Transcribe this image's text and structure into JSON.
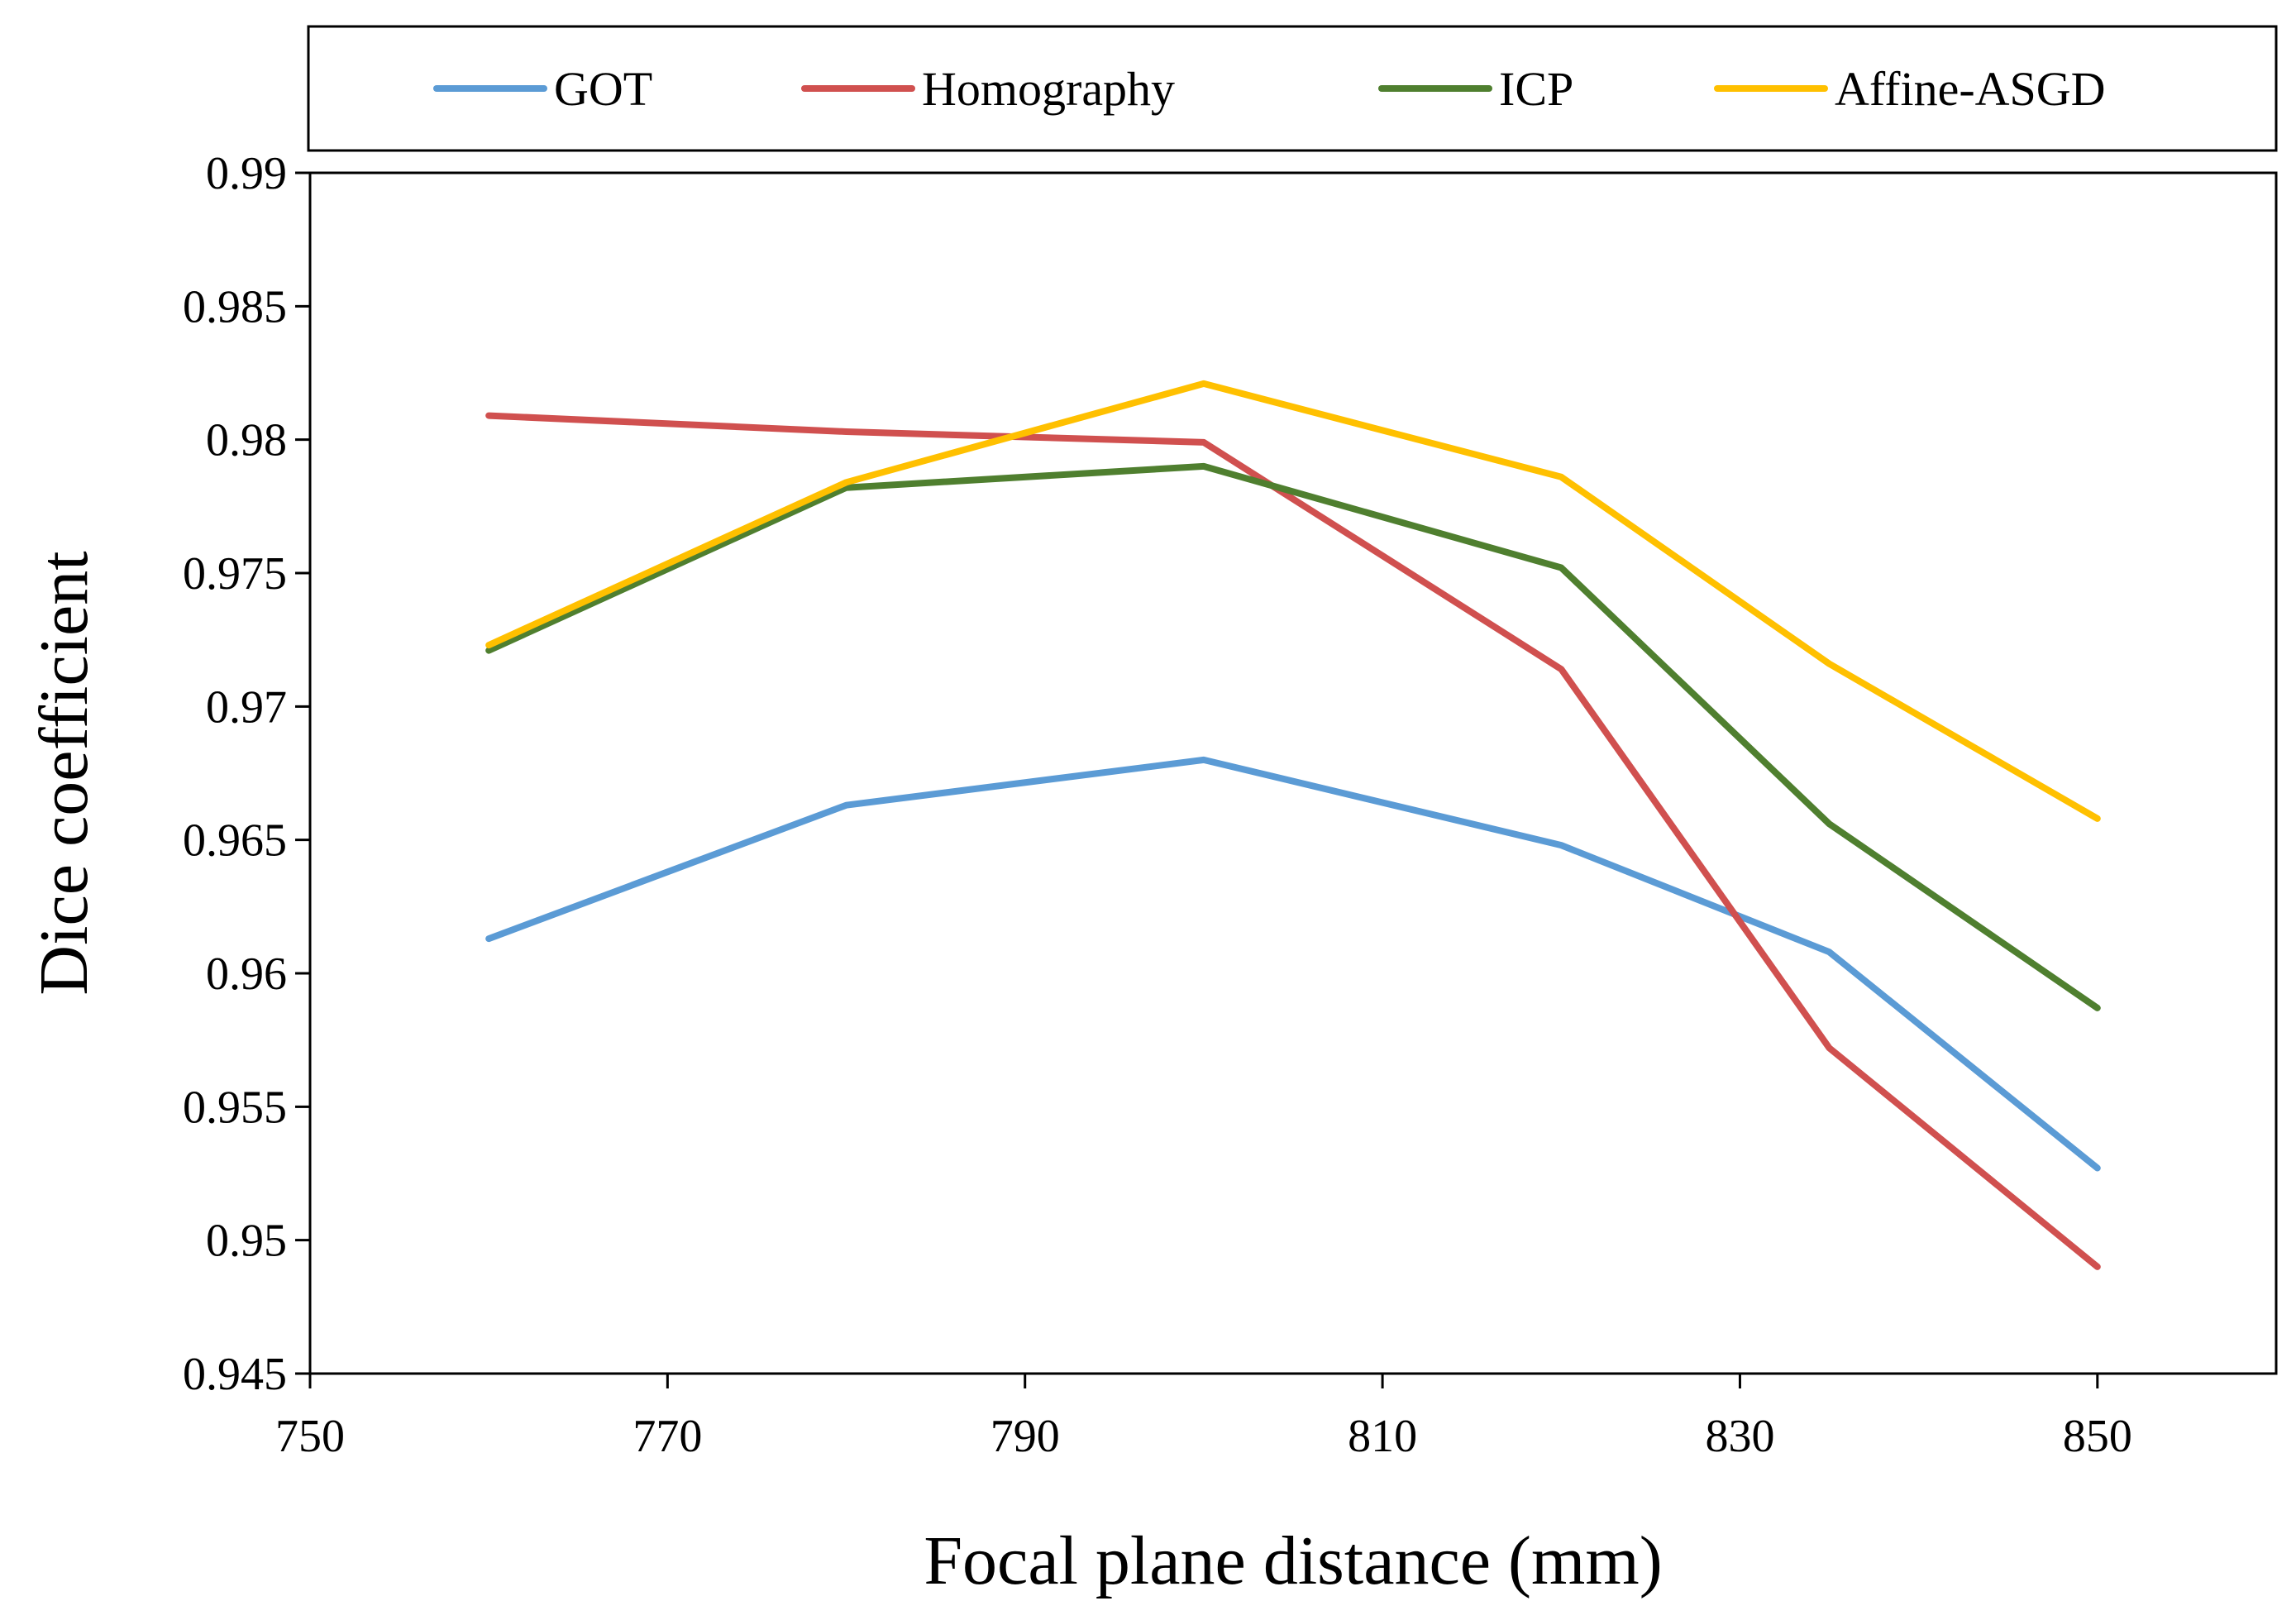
{
  "chart_data": {
    "type": "line",
    "title": "",
    "xlabel": "Focal plane distance (mm)",
    "ylabel": "Dice coefficient",
    "x": [
      760,
      780,
      800,
      820,
      835,
      850
    ],
    "xlim": [
      750,
      860
    ],
    "ylim": [
      0.945,
      0.99
    ],
    "xticks": [
      750,
      770,
      790,
      810,
      830,
      850
    ],
    "xtick_labels": [
      "750",
      "770",
      "790",
      "810",
      "830",
      "850"
    ],
    "yticks": [
      0.945,
      0.95,
      0.955,
      0.96,
      0.965,
      0.97,
      0.975,
      0.98,
      0.985,
      0.99
    ],
    "ytick_labels": [
      "0.945",
      "0.95",
      "0.955",
      "0.96",
      "0.965",
      "0.97",
      "0.975",
      "0.98",
      "0.985",
      "0.99"
    ],
    "grid": false,
    "legend_position": "top",
    "series": [
      {
        "name": "GOT",
        "color": "#5b9bd5",
        "values": [
          0.9613,
          0.9663,
          0.968,
          0.9648,
          0.9608,
          0.9527
        ]
      },
      {
        "name": "Homography",
        "color": "#d0504f",
        "values": [
          0.9809,
          0.9803,
          0.9799,
          0.9714,
          0.9572,
          0.949
        ]
      },
      {
        "name": "ICP",
        "color": "#4f7f2f",
        "values": [
          0.9721,
          0.9782,
          0.979,
          0.9752,
          0.9656,
          0.9587
        ]
      },
      {
        "name": "Affine-ASGD",
        "color": "#ffc000",
        "values": [
          0.9723,
          0.9784,
          0.9821,
          0.9786,
          0.9716,
          0.9658
        ]
      }
    ]
  }
}
